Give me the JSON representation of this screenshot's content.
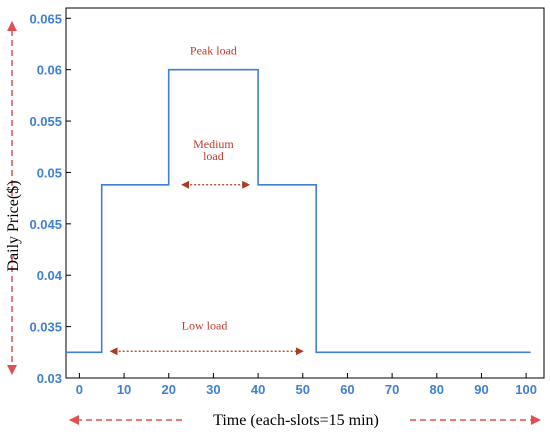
{
  "chart_data": {
    "type": "line",
    "step": true,
    "xlabel": "Time (each-slots=15 min)",
    "ylabel": "Daily Price($)",
    "xlim": [
      -3,
      104
    ],
    "ylim": [
      0.03,
      0.066
    ],
    "xticks": [
      "0",
      "10",
      "20",
      "30",
      "40",
      "50",
      "60",
      "70",
      "80",
      "90",
      "100"
    ],
    "yticks": [
      "0.03",
      "0.035",
      "0.04",
      "0.045",
      "0.05",
      "0.055",
      "0.06",
      "0.065"
    ],
    "grid": false,
    "legend": "none",
    "series": [
      {
        "color": "#3f7fd6",
        "x": [
          -3,
          5,
          5,
          20,
          20,
          40,
          40,
          53,
          53,
          101
        ],
        "y": [
          0.0325,
          0.0325,
          0.0488,
          0.0488,
          0.06,
          0.06,
          0.0488,
          0.0488,
          0.0325,
          0.0325
        ]
      }
    ],
    "annotations": [
      {
        "text": "Peak load",
        "x": 30,
        "y": 0.0615
      },
      {
        "text": "Medium",
        "x": 30,
        "y": 0.0524
      },
      {
        "text": "load",
        "x": 30,
        "y": 0.0512
      },
      {
        "text": "Low load",
        "x": 28,
        "y": 0.0347
      }
    ],
    "arrows": [
      {
        "from": [
          23,
          0.0488
        ],
        "to": [
          38,
          0.0488
        ]
      },
      {
        "from": [
          7,
          0.0326
        ],
        "to": [
          50,
          0.0326
        ]
      }
    ],
    "annotation_color": "#c0392b",
    "axis_arrow_color": "#e05050"
  }
}
